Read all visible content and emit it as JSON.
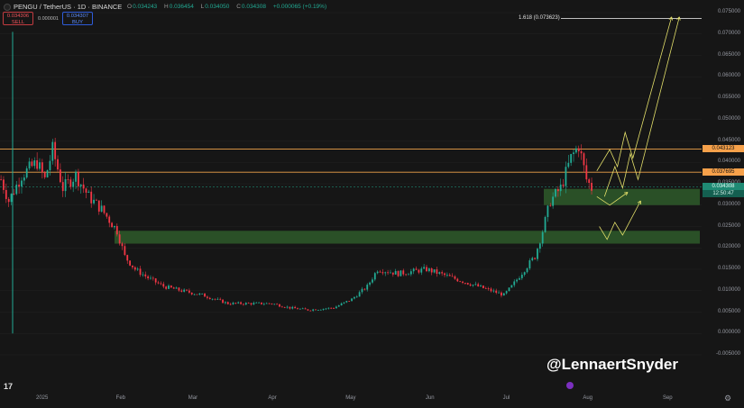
{
  "header": {
    "symbol_title": "PENGU / TetherUS · 1D · BINANCE",
    "ohlc": {
      "o_label": "O",
      "o_value": "0.034243",
      "h_label": "H",
      "h_value": "0.036454",
      "l_label": "L",
      "l_value": "0.034050",
      "c_label": "C",
      "c_value": "0.034308",
      "change": "+0.000065 (+0.19%)"
    },
    "sell_price": "0.034306",
    "sell_label": "SELL",
    "spread": "0.000001",
    "buy_price": "0.034307",
    "buy_label": "BUY"
  },
  "price_axis": [
    "0.075000",
    "0.070000",
    "0.065000",
    "0.060000",
    "0.055000",
    "0.050000",
    "0.045000",
    "0.040000",
    "0.035000",
    "0.030000",
    "0.025000",
    "0.020000",
    "0.015000",
    "0.010000",
    "0.005000",
    "0.000000",
    "-0.005000"
  ],
  "time_axis": [
    "2025",
    "Feb",
    "Mar",
    "Apr",
    "May",
    "Jun",
    "Jul",
    "Aug",
    "Sep"
  ],
  "tags": {
    "resistance_upper": "0.043123",
    "resistance_lower": "0.037695",
    "current_price": "0.034308",
    "countdown": "12:50:47"
  },
  "fib_label": "1.618 (0.073623)",
  "watermark": "@LennaertSnyder",
  "logo_text": "17",
  "colors": {
    "up": "#22ab94",
    "down": "#f23645",
    "level_line": "#f0a24a",
    "zone_fill": "#2e5a2a",
    "projection": "#e4e06a",
    "background": "#161616"
  },
  "chart_data": {
    "type": "candlestick",
    "symbol": "PENGU / TetherUS",
    "interval": "1D",
    "ylim": [
      -0.0065,
      0.0775
    ],
    "x_range": [
      "2024-12-17",
      "2025-09-30"
    ],
    "closes": [
      [
        "2024-12-17",
        0.036
      ],
      [
        "2024-12-20",
        0.031
      ],
      [
        "2024-12-25",
        0.037
      ],
      [
        "2024-12-31",
        0.04
      ],
      [
        "2025-01-03",
        0.036
      ],
      [
        "2025-01-06",
        0.043
      ],
      [
        "2025-01-10",
        0.034
      ],
      [
        "2025-01-15",
        0.037
      ],
      [
        "2025-01-20",
        0.032
      ],
      [
        "2025-01-25",
        0.029
      ],
      [
        "2025-01-31",
        0.024
      ],
      [
        "2025-02-03",
        0.018
      ],
      [
        "2025-02-07",
        0.015
      ],
      [
        "2025-02-12",
        0.013
      ],
      [
        "2025-02-18",
        0.011
      ],
      [
        "2025-02-25",
        0.01
      ],
      [
        "2025-03-05",
        0.009
      ],
      [
        "2025-03-15",
        0.007
      ],
      [
        "2025-03-25",
        0.007
      ],
      [
        "2025-04-01",
        0.007
      ],
      [
        "2025-04-08",
        0.006
      ],
      [
        "2025-04-15",
        0.0055
      ],
      [
        "2025-04-25",
        0.006
      ],
      [
        "2025-05-02",
        0.008
      ],
      [
        "2025-05-08",
        0.011
      ],
      [
        "2025-05-12",
        0.015
      ],
      [
        "2025-05-20",
        0.014
      ],
      [
        "2025-05-31",
        0.015
      ],
      [
        "2025-06-10",
        0.013
      ],
      [
        "2025-06-20",
        0.011
      ],
      [
        "2025-06-25",
        0.01
      ],
      [
        "2025-06-30",
        0.009
      ],
      [
        "2025-07-03",
        0.011
      ],
      [
        "2025-07-08",
        0.015
      ],
      [
        "2025-07-12",
        0.018
      ],
      [
        "2025-07-15",
        0.024
      ],
      [
        "2025-07-18",
        0.031
      ],
      [
        "2025-07-22",
        0.034
      ],
      [
        "2025-07-26",
        0.041
      ],
      [
        "2025-07-29",
        0.044
      ],
      [
        "2025-08-01",
        0.036
      ],
      [
        "2025-08-03",
        0.034
      ]
    ],
    "horizontal_levels": [
      0.043123,
      0.037695,
      0.073623
    ],
    "zones": [
      [
        0.03,
        0.0338
      ],
      [
        0.021,
        0.024
      ]
    ],
    "projection_paths": [
      [
        [
          "2025-08-05",
          0.032
        ],
        [
          "2025-08-10",
          0.03
        ],
        [
          "2025-08-17",
          0.033
        ]
      ],
      [
        [
          "2025-08-05",
          0.038
        ],
        [
          "2025-08-10",
          0.043
        ],
        [
          "2025-08-13",
          0.039
        ],
        [
          "2025-08-16",
          0.047
        ],
        [
          "2025-08-19",
          0.041
        ],
        [
          "2025-09-03",
          0.074
        ]
      ],
      [
        [
          "2025-08-08",
          0.032
        ],
        [
          "2025-08-12",
          0.039
        ],
        [
          "2025-08-15",
          0.034
        ],
        [
          "2025-08-18",
          0.042
        ],
        [
          "2025-08-21",
          0.036
        ],
        [
          "2025-09-06",
          0.074
        ]
      ],
      [
        [
          "2025-08-06",
          0.025
        ],
        [
          "2025-08-09",
          0.022
        ],
        [
          "2025-08-12",
          0.026
        ],
        [
          "2025-08-15",
          0.023
        ],
        [
          "2025-08-22",
          0.031
        ]
      ]
    ]
  }
}
